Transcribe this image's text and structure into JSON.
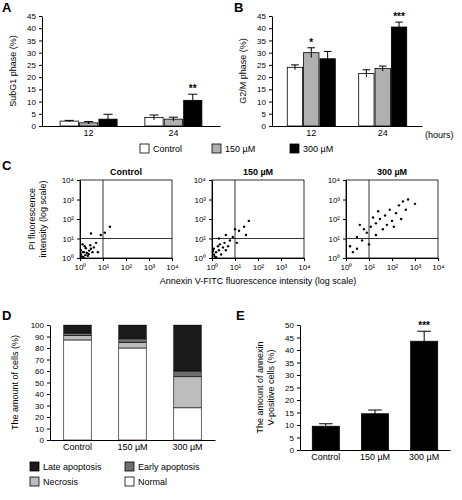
{
  "chart_data": [
    {
      "type": "bar",
      "panel": "A",
      "y_label": "SubG1 phase (%)",
      "categories": [
        "12",
        "24"
      ],
      "ylim": [
        0,
        45
      ],
      "yticks": [
        0,
        5,
        10,
        15,
        20,
        25,
        30,
        35,
        40,
        45
      ],
      "legend": "bottom",
      "series": [
        {
          "name": "Control",
          "color": "#ffffff",
          "values": [
            2,
            3.5
          ],
          "errors": [
            0.3,
            1
          ]
        },
        {
          "name": "150 µM",
          "color": "#b0b0b0",
          "values": [
            1.3,
            2.8
          ],
          "errors": [
            0.5,
            0.8
          ]
        },
        {
          "name": "300 µM",
          "color": "#000000",
          "values": [
            2.8,
            10.5
          ],
          "errors": [
            2,
            2.5
          ],
          "significance": [
            null,
            "**"
          ]
        }
      ]
    },
    {
      "type": "bar",
      "panel": "B",
      "y_label": "G2/M phase (%)",
      "x_label": "(hours)",
      "categories": [
        "12",
        "24"
      ],
      "ylim": [
        0,
        45
      ],
      "yticks": [
        0,
        5,
        10,
        15,
        20,
        25,
        30,
        35,
        40,
        45
      ],
      "series": [
        {
          "color": "#ffffff",
          "values": [
            24,
            21.5
          ],
          "errors": [
            1,
            1.5
          ]
        },
        {
          "color": "#b0b0b0",
          "values": [
            30,
            23.5
          ],
          "errors": [
            2,
            1
          ],
          "significance": [
            "*",
            null
          ]
        },
        {
          "color": "#000000",
          "values": [
            27.5,
            40.5
          ],
          "errors": [
            3,
            2
          ],
          "significance": [
            null,
            "***"
          ]
        }
      ]
    },
    {
      "type": "scatter",
      "panel": "C",
      "title": "Control",
      "y_label": "PI fluorescence intensity (log scale)",
      "log": true,
      "color": "#000000",
      "xlim": [
        1,
        10000
      ],
      "ylim": [
        1,
        10000
      ],
      "xticks": [
        {
          "value": 1,
          "label": "10⁰"
        },
        {
          "value": 10,
          "label": "10¹"
        },
        {
          "value": 100,
          "label": "10²"
        },
        {
          "value": 1000,
          "label": "10³"
        },
        {
          "value": 10000,
          "label": "10⁴"
        }
      ],
      "yticks": [
        {
          "value": 1,
          "label": "10⁰"
        },
        {
          "value": 10,
          "label": "10¹"
        },
        {
          "value": 100,
          "label": "10²"
        },
        {
          "value": 1000,
          "label": "10³"
        },
        {
          "value": 10000,
          "label": "10⁴"
        }
      ],
      "quadrant_x": 10,
      "quadrant_y": 10,
      "x": [
        1.2,
        1.5,
        2,
        1.1,
        1.8,
        2.5,
        3,
        1.4,
        2.2,
        1.3,
        1.6,
        3.5,
        2.8,
        1.3,
        4,
        1.1,
        5,
        8,
        12,
        3,
        20,
        6,
        1.7,
        2.4
      ],
      "values": [
        1.2,
        2,
        1.8,
        2.5,
        3.2,
        2.4,
        3,
        1.1,
        1.3,
        2,
        4,
        2,
        4.5,
        5,
        3.5,
        1.5,
        6,
        15,
        20,
        18,
        40,
        2,
        1.4,
        1.6
      ]
    },
    {
      "type": "scatter",
      "title": "150 µM",
      "x_label": "Annexin V-FITC fluorescence intensity (log scale)",
      "log": true,
      "color": "#000000",
      "xlim": [
        1,
        10000
      ],
      "ylim": [
        1,
        10000
      ],
      "xticks": [
        {
          "value": 1,
          "label": "10⁰"
        },
        {
          "value": 10,
          "label": "10¹"
        },
        {
          "value": 100,
          "label": "10²"
        },
        {
          "value": 1000,
          "label": "10³"
        },
        {
          "value": 10000,
          "label": "10⁴"
        }
      ],
      "yticks": [
        {
          "value": 1,
          "label": "10⁰"
        },
        {
          "value": 10,
          "label": "10¹"
        },
        {
          "value": 100,
          "label": "10²"
        },
        {
          "value": 1000,
          "label": "10³"
        },
        {
          "value": 10000,
          "label": "10⁴"
        }
      ],
      "quadrant_x": 10,
      "quadrant_y": 10,
      "x": [
        1.2,
        1.5,
        2,
        1.2,
        2.5,
        3,
        1.1,
        1.8,
        4,
        2.2,
        3.5,
        5,
        1.5,
        6,
        8,
        15,
        25,
        10,
        40,
        4,
        2,
        30,
        12,
        1.3
      ],
      "values": [
        1.5,
        2,
        2.5,
        3,
        1.5,
        3.5,
        2.2,
        4,
        2.5,
        5,
        6,
        4,
        1.1,
        8,
        12,
        25,
        40,
        30,
        80,
        15,
        10,
        15,
        6,
        1.2
      ]
    },
    {
      "type": "scatter",
      "title": "300 µM",
      "log": true,
      "color": "#000000",
      "xlim": [
        1,
        10000
      ],
      "ylim": [
        1,
        10000
      ],
      "xticks": [
        {
          "value": 1,
          "label": "10⁰"
        },
        {
          "value": 10,
          "label": "10¹"
        },
        {
          "value": 100,
          "label": "10²"
        },
        {
          "value": 1000,
          "label": "10³"
        },
        {
          "value": 10000,
          "label": "10⁴"
        }
      ],
      "yticks": [
        {
          "value": 1,
          "label": "10⁰"
        },
        {
          "value": 10,
          "label": "10¹"
        },
        {
          "value": 100,
          "label": "10²"
        },
        {
          "value": 1000,
          "label": "10³"
        },
        {
          "value": 10000,
          "label": "10⁴"
        }
      ],
      "quadrant_x": 10,
      "quadrant_y": 10,
      "x": [
        2,
        3,
        1.5,
        5,
        8,
        12,
        20,
        30,
        50,
        80,
        150,
        200,
        300,
        500,
        20,
        40,
        60,
        100,
        10,
        6,
        15,
        25,
        120,
        250,
        3,
        4,
        400,
        1000
      ],
      "values": [
        2,
        3,
        4,
        8,
        20,
        40,
        60,
        100,
        150,
        300,
        200,
        500,
        800,
        1000,
        15,
        30,
        50,
        80,
        5,
        30,
        120,
        250,
        40,
        100,
        12,
        50,
        300,
        600
      ]
    },
    {
      "type": "bar",
      "panel": "D",
      "stacked": true,
      "y_label": "The amount of cells (%)",
      "categories": [
        "Control",
        "150 µM",
        "300 µM"
      ],
      "ylim": [
        0,
        100
      ],
      "yticks": [
        0,
        10,
        20,
        30,
        40,
        50,
        60,
        70,
        80,
        90,
        100
      ],
      "legend": "bottom",
      "series": [
        {
          "name": "Normal",
          "color": "#ffffff",
          "values": [
            87,
            80,
            28
          ]
        },
        {
          "name": "Necrosis",
          "color": "#bdbdbd",
          "values": [
            4,
            5,
            27
          ]
        },
        {
          "name": "Early apoptosis",
          "color": "#6e6e6e",
          "values": [
            2,
            3,
            5
          ]
        },
        {
          "name": "Late apoptosis",
          "color": "#1a1a1a",
          "values": [
            7,
            12,
            40
          ]
        }
      ]
    },
    {
      "type": "bar",
      "panel": "E",
      "y_label": "The amount of annexin V-positive cells (%)",
      "categories": [
        "Control",
        "150 µM",
        "300 µM"
      ],
      "ylim": [
        0,
        50
      ],
      "yticks": [
        0,
        5,
        10,
        15,
        20,
        25,
        30,
        35,
        40,
        45,
        50
      ],
      "color": "#000000",
      "values": [
        9.5,
        14.5,
        43.5
      ],
      "errors": [
        1,
        1.5,
        4
      ],
      "significance": [
        null,
        null,
        "***"
      ]
    }
  ]
}
